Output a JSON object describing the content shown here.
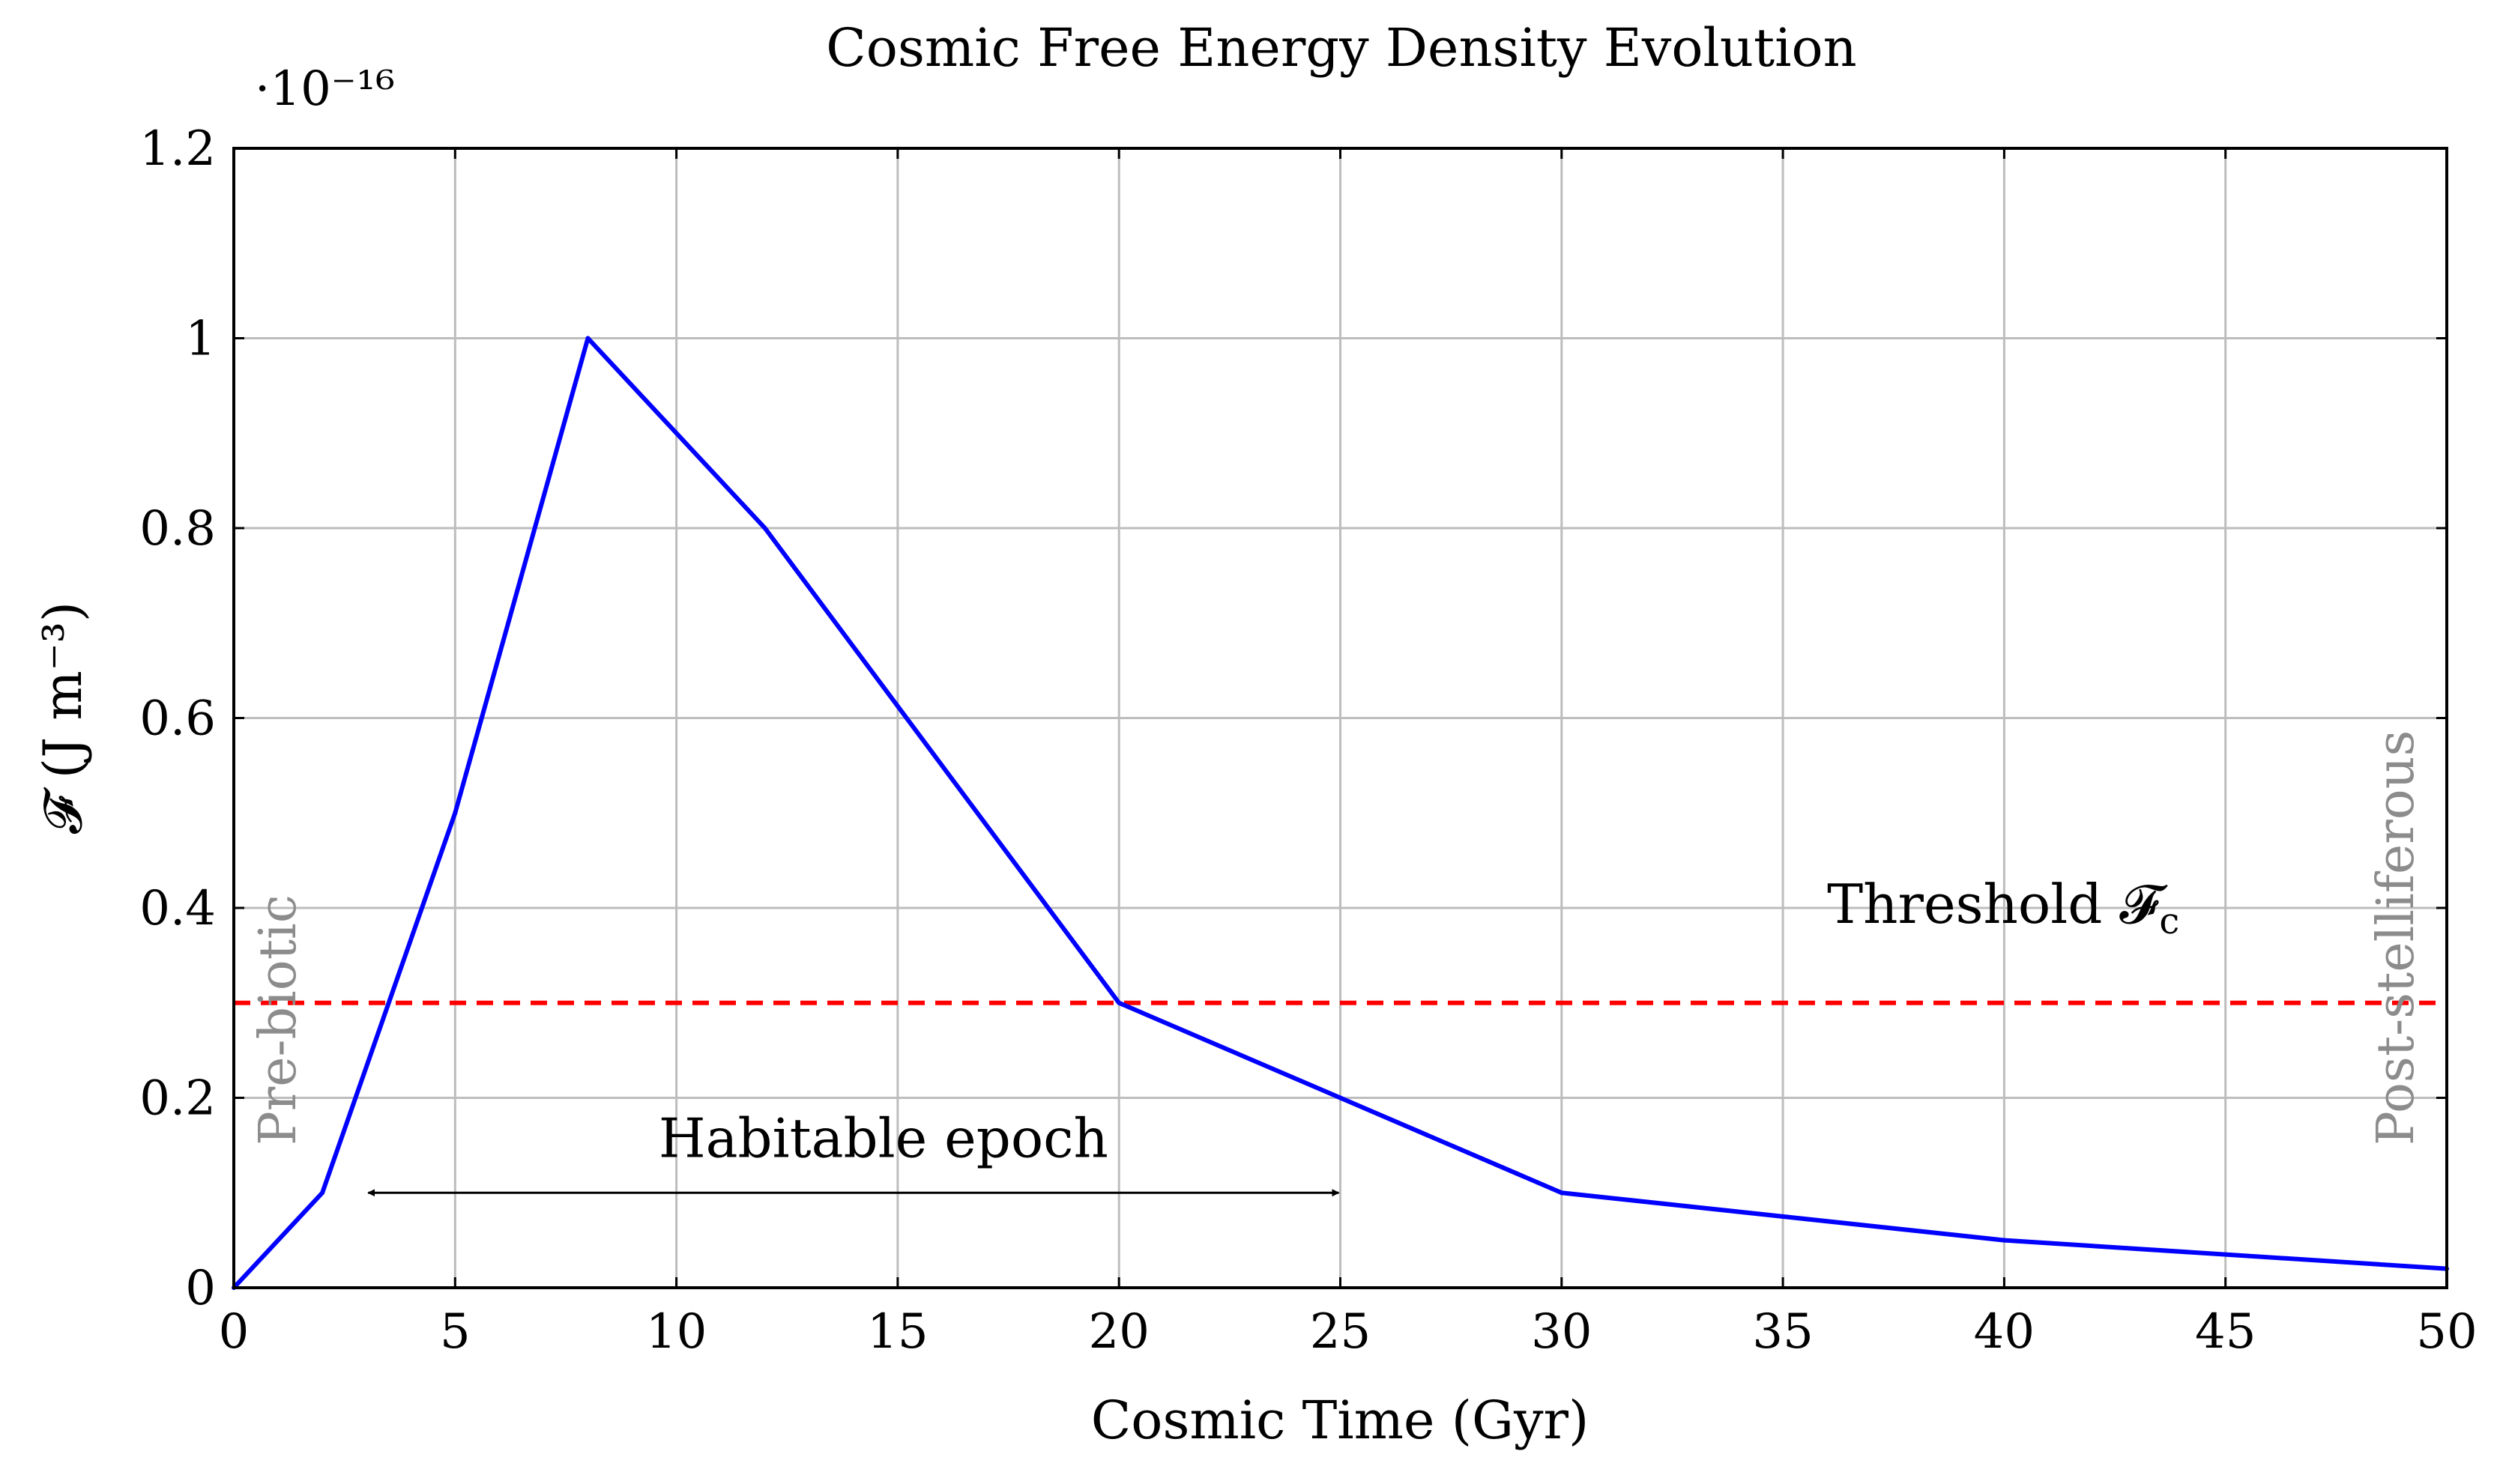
{
  "chart_data": {
    "type": "line",
    "title": "Cosmic Free Energy Density Evolution",
    "xlabel": "Cosmic Time (Gyr)",
    "ylabel": "𝓕 (J m⁻³)",
    "y_scale_label": "·10⁻¹⁶",
    "xlim": [
      0,
      50
    ],
    "ylim": [
      0,
      1.2
    ],
    "xticks": [
      0,
      5,
      10,
      15,
      20,
      25,
      30,
      35,
      40,
      45,
      50
    ],
    "xtick_labels": [
      "0",
      "5",
      "10",
      "15",
      "20",
      "25",
      "30",
      "35",
      "40",
      "45",
      "50"
    ],
    "yticks": [
      0,
      0.2,
      0.4,
      0.6,
      0.8,
      1.0,
      1.2
    ],
    "ytick_labels": [
      "0",
      "0.2",
      "0.4",
      "0.6",
      "0.8",
      "1",
      "1.2"
    ],
    "grid": true,
    "series": [
      {
        "color": "#0000ff",
        "x": [
          0,
          2,
          5,
          8,
          12,
          20,
          25,
          30,
          40,
          50
        ],
        "y": [
          0,
          0.1,
          0.5,
          1.0,
          0.8,
          0.3,
          0.2,
          0.1,
          0.05,
          0.02
        ]
      }
    ],
    "threshold": {
      "y": 0.3,
      "color": "#ff0000",
      "style": "dashed",
      "label": "Threshold 𝓕",
      "label_subscript": "c"
    },
    "habitable_epoch": {
      "label": "Habitable epoch",
      "x_start": 3,
      "x_end": 25,
      "y": 0.1
    },
    "region_labels": {
      "left": "Pre-biotic",
      "right": "Post-stelliferous",
      "color": "#8c8c8c"
    }
  }
}
